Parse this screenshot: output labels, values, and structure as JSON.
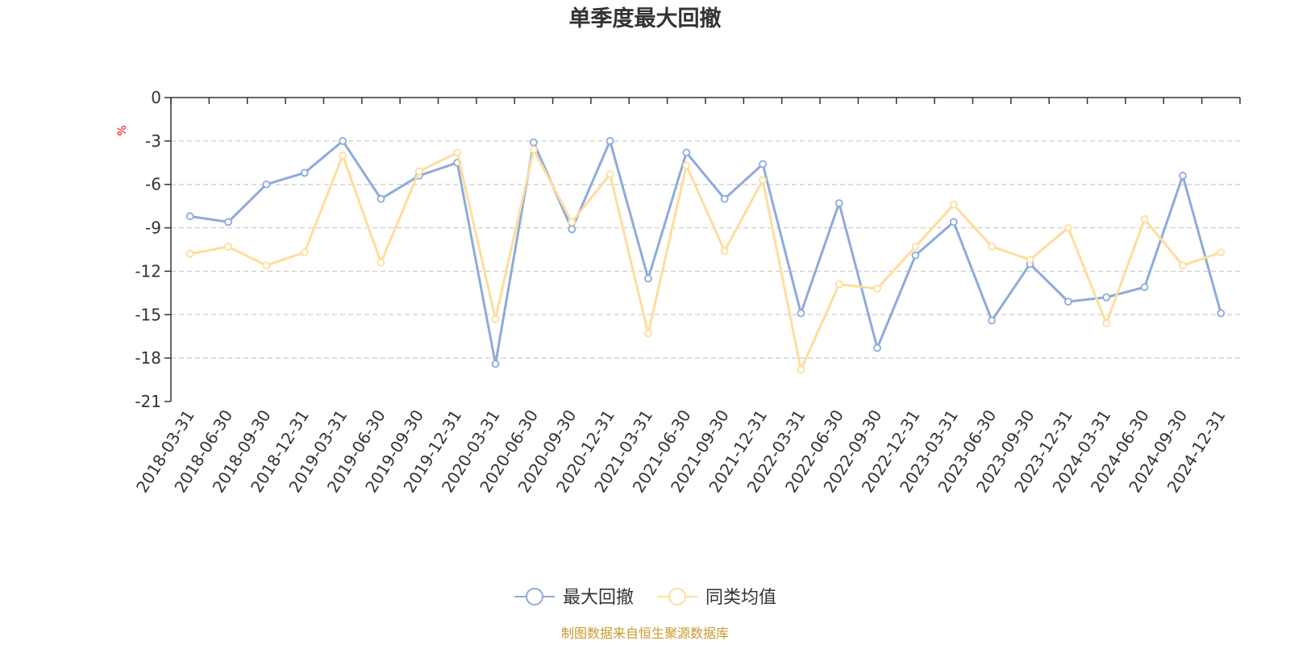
{
  "colors": {
    "series_max_drawdown": "#8eaadb",
    "series_peer_avg": "#fedd9c",
    "unit": "#ff0000",
    "source": "#c99a2e",
    "grid": "#cccccc",
    "axis": "#333333"
  },
  "source_note": "制图数据来自恒生聚源数据库",
  "chart_data": {
    "type": "line",
    "title": "单季度最大回撤",
    "ylabel": "%",
    "xlabel": "",
    "ylim": [
      -21,
      0
    ],
    "yticks": [
      0,
      -3,
      -6,
      -9,
      -12,
      -15,
      -18,
      -21
    ],
    "grid": "dashed horizontal",
    "legend_position": "bottom-center",
    "categories": [
      "2018-03-31",
      "2018-06-30",
      "2018-09-30",
      "2018-12-31",
      "2019-03-31",
      "2019-06-30",
      "2019-09-30",
      "2019-12-31",
      "2020-03-31",
      "2020-06-30",
      "2020-09-30",
      "2020-12-31",
      "2021-03-31",
      "2021-06-30",
      "2021-09-30",
      "2021-12-31",
      "2022-03-31",
      "2022-06-30",
      "2022-09-30",
      "2022-12-31",
      "2023-03-31",
      "2023-06-30",
      "2023-09-30",
      "2023-12-31",
      "2024-03-31",
      "2024-06-30",
      "2024-09-30",
      "2024-12-31"
    ],
    "series": [
      {
        "name": "最大回撤",
        "color": "#8eaadb",
        "values": [
          -8.2,
          -8.6,
          -6.0,
          -5.2,
          -3.0,
          -7.0,
          -5.4,
          -4.5,
          -18.4,
          -3.1,
          -9.1,
          -3.0,
          -12.5,
          -3.8,
          -7.0,
          -4.6,
          -14.9,
          -7.3,
          -17.3,
          -10.9,
          -8.6,
          -15.4,
          -11.5,
          -14.1,
          -13.8,
          -13.1,
          -5.4,
          -14.9
        ]
      },
      {
        "name": "同类均值",
        "color": "#fedd9c",
        "values": [
          -10.8,
          -10.3,
          -11.6,
          -10.7,
          -4.0,
          -11.4,
          -5.1,
          -3.8,
          -15.3,
          -3.6,
          -8.6,
          -5.3,
          -16.3,
          -4.7,
          -10.6,
          -5.7,
          -18.8,
          -12.9,
          -13.2,
          -10.3,
          -7.4,
          -10.3,
          -11.2,
          -9.0,
          -15.6,
          -8.4,
          -11.6,
          -10.7
        ]
      }
    ]
  }
}
